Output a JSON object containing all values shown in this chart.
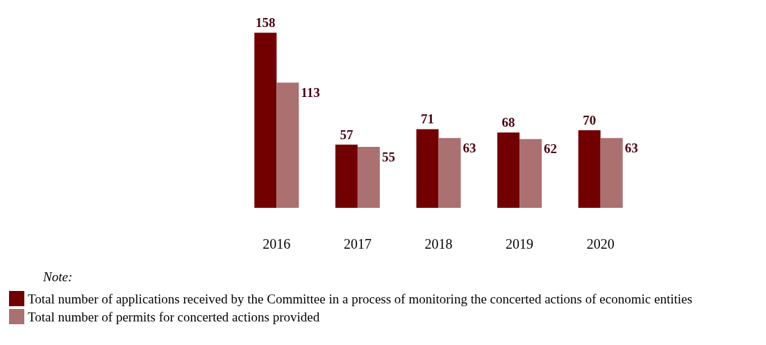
{
  "chart_data": {
    "type": "bar",
    "categories": [
      "2016",
      "2017",
      "2018",
      "2019",
      "2020"
    ],
    "series": [
      {
        "name": "Total number of applications received by the Committee in a process of monitoring the concerted actions of economic entities",
        "color": "#720000",
        "values": [
          158,
          57,
          71,
          68,
          70
        ]
      },
      {
        "name": "Total number of permits for concerted actions provided",
        "color": "#ab7070",
        "values": [
          113,
          55,
          63,
          62,
          63
        ]
      }
    ],
    "data_labels": true,
    "legend": "bottom left",
    "legend_title": "Note:",
    "grid": false
  }
}
